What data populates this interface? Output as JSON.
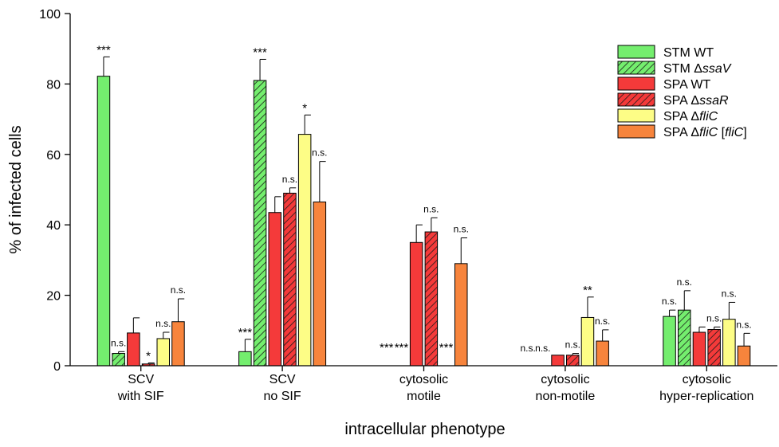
{
  "chart_data": {
    "type": "bar",
    "xlabel": "intracellular phenotype",
    "ylabel": "% of infected cells",
    "ylim": [
      0,
      100
    ],
    "yticks": [
      0,
      20,
      40,
      60,
      80,
      100
    ],
    "grid": false,
    "legend_position": "top-right",
    "categories": [
      [
        "SCV",
        "with SIF"
      ],
      [
        "SCV",
        "no SIF"
      ],
      [
        "cytosolic",
        "motile"
      ],
      [
        "cytosolic",
        "non-motile"
      ],
      [
        "cytosolic",
        "hyper-replication"
      ]
    ],
    "series": [
      {
        "name_prefix": "STM ",
        "name_mark": "",
        "name_suffix": "WT",
        "color": "#74ee6e",
        "hatch": false,
        "values": [
          82.2,
          4.0,
          0,
          0,
          14.0
        ],
        "errors": [
          5.5,
          3.5,
          0,
          0,
          1.8
        ],
        "sig": [
          "***",
          "***",
          "***",
          "n.s.",
          "n.s."
        ]
      },
      {
        "name_prefix": "STM ",
        "name_mark": "Δ",
        "name_suffix": "ssaV",
        "color": "#74ee6e",
        "hatch": true,
        "values": [
          3.5,
          81.0,
          0,
          0,
          15.8
        ],
        "errors": [
          0.5,
          6.0,
          0,
          0,
          5.5
        ],
        "sig": [
          "n.s.",
          "***",
          "***",
          "n.s.",
          "n.s."
        ]
      },
      {
        "name_prefix": "SPA ",
        "name_mark": "",
        "name_suffix": "WT",
        "color": "#f43a3a",
        "hatch": false,
        "values": [
          9.3,
          43.5,
          35.0,
          3.0,
          9.5
        ],
        "errors": [
          4.3,
          4.5,
          5.0,
          0,
          1.5
        ],
        "sig": [
          "",
          "",
          "",
          "",
          ""
        ]
      },
      {
        "name_prefix": "SPA ",
        "name_mark": "Δ",
        "name_suffix": "ssaR",
        "color": "#f43a3a",
        "hatch": true,
        "values": [
          0.5,
          49.0,
          38.0,
          3.0,
          10.3
        ],
        "errors": [
          0.3,
          1.5,
          4.0,
          0.5,
          0.7
        ],
        "sig": [
          "*",
          "n.s.",
          "n.s.",
          "n.s.",
          "n.s."
        ]
      },
      {
        "name_prefix": "SPA ",
        "name_mark": "Δ",
        "name_suffix": "fliC",
        "color": "#fdfd86",
        "hatch": false,
        "values": [
          7.7,
          65.7,
          0,
          13.7,
          13.2
        ],
        "errors": [
          1.8,
          5.5,
          0,
          5.8,
          4.8
        ],
        "sig": [
          "n.s.",
          "*",
          "***",
          "**",
          "n.s."
        ]
      },
      {
        "name_prefix": "SPA ",
        "name_mark": "Δ",
        "name_suffix": "fliC [fliC]",
        "color": "#f7843c",
        "hatch": false,
        "values": [
          12.5,
          46.5,
          29.0,
          7.0,
          5.6
        ],
        "errors": [
          6.5,
          11.5,
          7.3,
          3.2,
          3.6
        ],
        "sig": [
          "n.s.",
          "n.s.",
          "n.s.",
          "n.s.",
          "n.s."
        ]
      }
    ]
  }
}
